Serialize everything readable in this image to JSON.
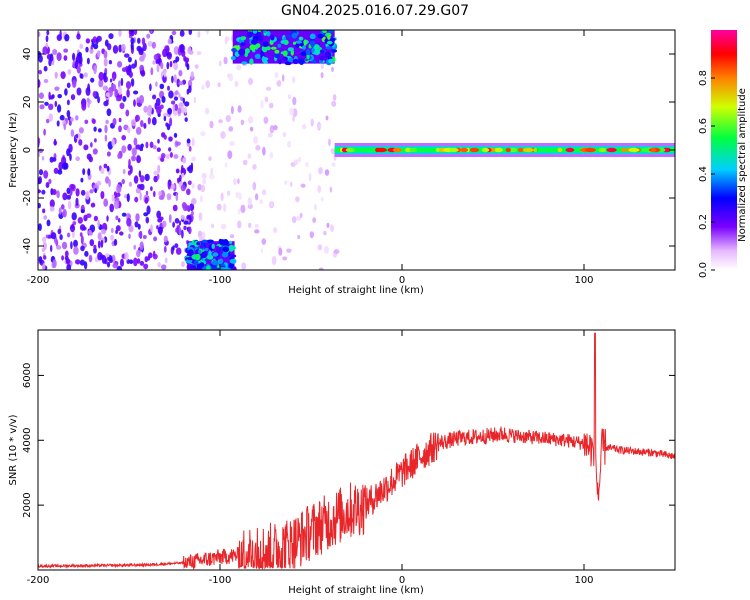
{
  "figure_title": "GN04.2025.016.07.29.G07",
  "chart_data": [
    {
      "type": "heatmap",
      "xlabel": "Height of straight line (km)",
      "ylabel": "Frequency (Hz)",
      "xlim": [
        -200,
        150
      ],
      "ylim": [
        -50,
        50
      ],
      "xticks": [
        -200,
        -100,
        0,
        100
      ],
      "yticks": [
        -40,
        -20,
        0,
        20,
        40
      ],
      "colorbar": {
        "label": "Normalized spectral amplitude",
        "range": [
          0,
          1
        ],
        "ticks": [
          "0.0",
          "0.2",
          "0.4",
          "0.6",
          "0.8"
        ]
      },
      "regions": [
        {
          "desc": "scattered noise",
          "x": [
            -200,
            -115
          ],
          "y": [
            -50,
            50
          ],
          "amplitude": 0.15
        },
        {
          "desc": "sparse noise",
          "x": [
            -115,
            -35
          ],
          "y": [
            -50,
            50
          ],
          "amplitude": 0.08
        },
        {
          "desc": "upper strong band",
          "x": [
            -93,
            -37
          ],
          "y": [
            36,
            50
          ],
          "amplitude": 0.4
        },
        {
          "desc": "lower strong band",
          "x": [
            -118,
            -92
          ],
          "y": [
            -50,
            -38
          ],
          "amplitude": 0.35
        },
        {
          "desc": "main signal ridge at 0 Hz",
          "x": [
            -37,
            150
          ],
          "y": [
            -2,
            2
          ],
          "amplitude": 0.85
        }
      ]
    },
    {
      "type": "line",
      "xlabel": "Height of straight line (km)",
      "ylabel": "SNR (10 * v/v)",
      "xlim": [
        -200,
        150
      ],
      "ylim": [
        0,
        7400
      ],
      "xticks": [
        -200,
        -100,
        0,
        100
      ],
      "yticks": [
        2000,
        4000,
        6000
      ],
      "series": [
        {
          "color": "#e8262a",
          "x": [
            -200,
            -180,
            -160,
            -140,
            -120,
            -110,
            -100,
            -90,
            -80,
            -70,
            -60,
            -50,
            -40,
            -30,
            -20,
            -10,
            0,
            10,
            20,
            30,
            40,
            50,
            55,
            60,
            70,
            80,
            90,
            100,
            105,
            108,
            110,
            115,
            120,
            130,
            140,
            150
          ],
          "y": [
            120,
            130,
            140,
            160,
            220,
            300,
            400,
            450,
            500,
            600,
            800,
            1200,
            1500,
            1800,
            2000,
            2500,
            3000,
            3500,
            3900,
            4050,
            4100,
            4150,
            4200,
            4150,
            4100,
            4050,
            4000,
            3900,
            3700,
            2300,
            3800,
            3750,
            3700,
            3650,
            3600,
            3500
          ]
        }
      ],
      "annotations": [
        {
          "x": 106,
          "y": 7300,
          "desc": "spike"
        }
      ]
    }
  ]
}
